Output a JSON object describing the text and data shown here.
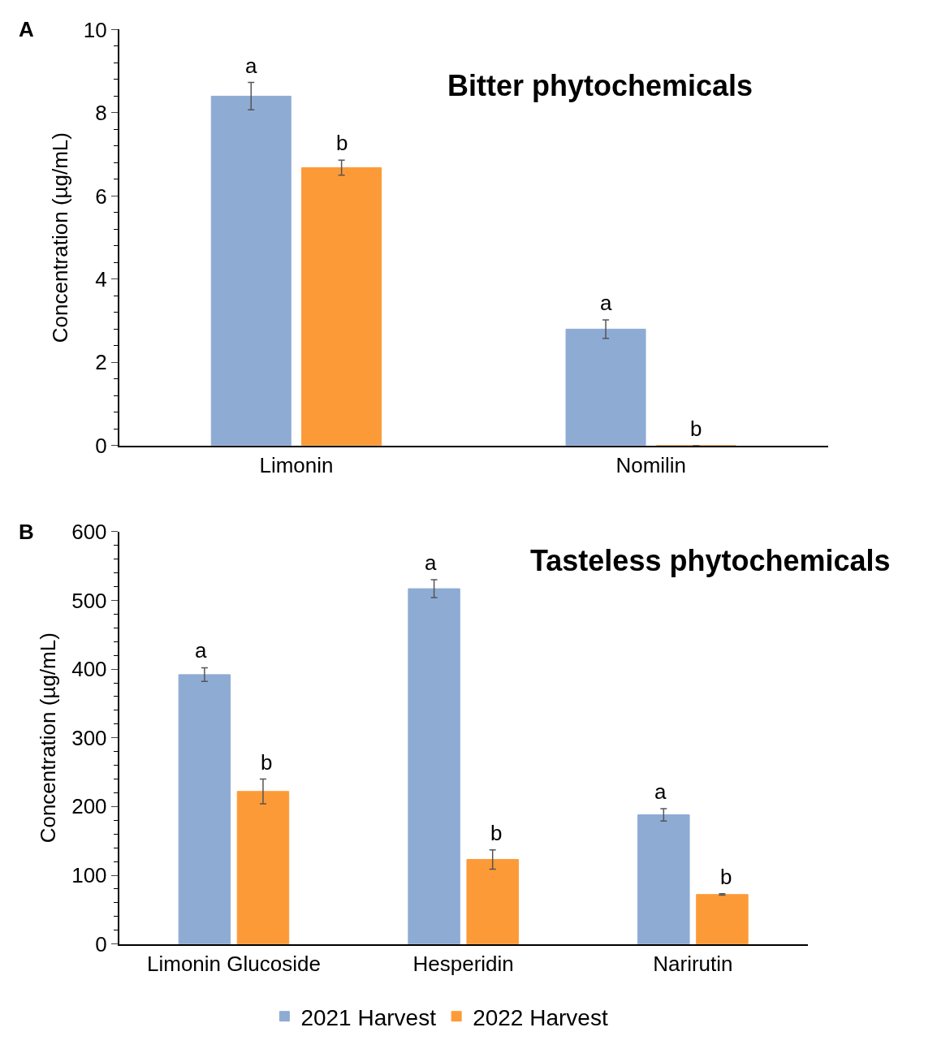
{
  "chart_data": [
    {
      "type": "bar",
      "title": "Bitter phytochemicals",
      "ylabel": "Concentration (µg/mL)",
      "categories": [
        "Limonin",
        "Nomilin"
      ],
      "series": [
        {
          "name": "2021 Harvest",
          "color": "#8eabd3",
          "values": [
            8.4,
            2.8
          ],
          "errors": [
            0.33,
            0.22
          ],
          "value_labels": [
            "a",
            "a"
          ]
        },
        {
          "name": "2022 Harvest",
          "color": "#fd9a38",
          "values": [
            6.68,
            0
          ],
          "errors": [
            0.18,
            null
          ],
          "value_labels": [
            "b",
            "b"
          ]
        }
      ],
      "ylim": [
        0,
        10
      ],
      "yticks": [
        0,
        {
          "value": 0.4,
          "label": null
        },
        {
          "value": 0.8,
          "label": null
        },
        {
          "value": 1.2,
          "label": null
        },
        {
          "value": 1.6,
          "label": null
        },
        2,
        {
          "value": 2.4,
          "label": null
        },
        {
          "value": 2.8,
          "label": null
        },
        {
          "value": 3.2,
          "label": null
        },
        {
          "value": 3.6,
          "label": null
        },
        4,
        {
          "value": 4.4,
          "label": null
        },
        {
          "value": 4.8,
          "label": null
        },
        {
          "value": 5.2,
          "label": null
        },
        {
          "value": 5.6,
          "label": null
        },
        6,
        {
          "value": 6.4,
          "label": null
        },
        {
          "value": 6.8,
          "label": null
        },
        {
          "value": 7.2,
          "label": null
        },
        {
          "value": 7.6,
          "label": null
        },
        8,
        {
          "value": 8.4,
          "label": null
        },
        {
          "value": 8.8,
          "label": null
        },
        {
          "value": 9.2,
          "label": null
        },
        {
          "value": 9.6,
          "label": null
        },
        10
      ],
      "annotations": [
        "A"
      ],
      "legend": "bottom"
    },
    {
      "type": "bar",
      "title": "Tasteless phytochemicals",
      "ylabel": "Concentration (µg/mL)",
      "categories": [
        "Limonin Glucoside",
        "Hesperidin",
        "Narirutin"
      ],
      "series": [
        {
          "name": "2021 Harvest",
          "color": "#8eabd3",
          "values": [
            392,
            517,
            188
          ],
          "errors": [
            10,
            13,
            9
          ],
          "value_labels": [
            "a",
            "a",
            "a"
          ]
        },
        {
          "name": "2022 Harvest",
          "color": "#fd9a38",
          "values": [
            222,
            123,
            72
          ],
          "errors": [
            18,
            14,
            1
          ],
          "value_labels": [
            "b",
            "b",
            "b"
          ]
        }
      ],
      "ylim": [
        0,
        600
      ],
      "yticks": [
        0,
        {
          "value": 20,
          "label": null
        },
        {
          "value": 40,
          "label": null
        },
        {
          "value": 60,
          "label": null
        },
        {
          "value": 80,
          "label": null
        },
        100,
        {
          "value": 120,
          "label": null
        },
        {
          "value": 140,
          "label": null
        },
        {
          "value": 160,
          "label": null
        },
        {
          "value": 180,
          "label": null
        },
        200,
        {
          "value": 220,
          "label": null
        },
        {
          "value": 240,
          "label": null
        },
        {
          "value": 260,
          "label": null
        },
        {
          "value": 280,
          "label": null
        },
        300,
        {
          "value": 320,
          "label": null
        },
        {
          "value": 340,
          "label": null
        },
        {
          "value": 360,
          "label": null
        },
        {
          "value": 380,
          "label": null
        },
        400,
        {
          "value": 420,
          "label": null
        },
        {
          "value": 440,
          "label": null
        },
        {
          "value": 460,
          "label": null
        },
        {
          "value": 480,
          "label": null
        },
        500,
        {
          "value": 520,
          "label": null
        },
        {
          "value": 540,
          "label": null
        },
        {
          "value": 560,
          "label": null
        },
        {
          "value": 580,
          "label": null
        },
        600
      ],
      "annotations": [
        "B"
      ],
      "legend": "bottom"
    }
  ]
}
